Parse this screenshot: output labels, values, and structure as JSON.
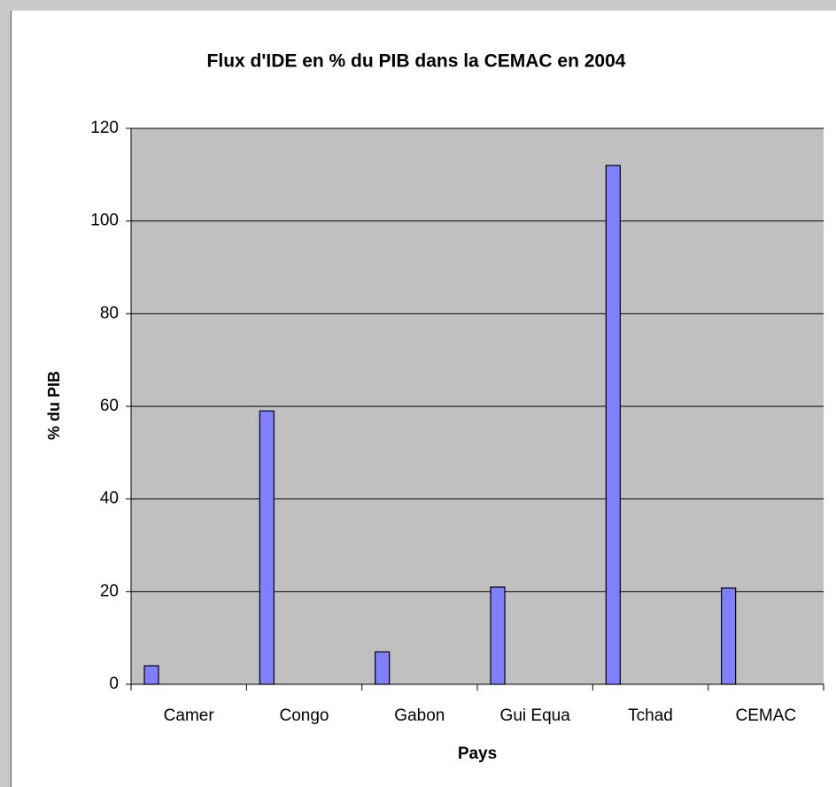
{
  "chart_data": {
    "type": "bar",
    "title": "Flux d'IDE en % du PIB dans la CEMAC en 2004",
    "x_label": "Pays",
    "y_label": "% du PIB",
    "categories": [
      "Camer",
      "Congo",
      "Gabon",
      "Gui Equa",
      "Tchad",
      "CEMAC"
    ],
    "values": [
      4,
      59,
      7,
      21,
      112,
      20.8
    ],
    "color": "#8080ff",
    "ylim": [
      0,
      120
    ],
    "yticks": [
      0,
      20,
      40,
      60,
      80,
      100,
      120
    ],
    "grid": true
  }
}
